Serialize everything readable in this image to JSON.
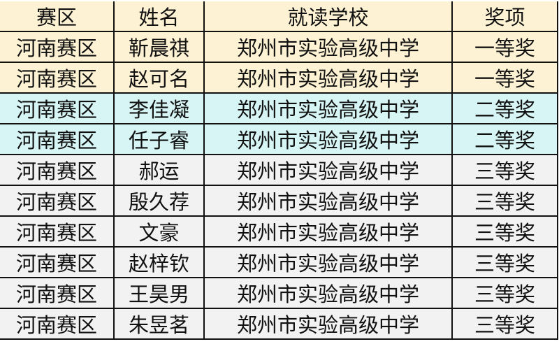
{
  "headers": [
    "赛区",
    "姓名",
    "就读学校",
    "奖项"
  ],
  "rows": [
    [
      "河南赛区",
      "靳晨祺",
      "郑州市实验高级中学",
      "一等奖"
    ],
    [
      "河南赛区",
      "赵可名",
      "郑州市实验高级中学",
      "一等奖"
    ],
    [
      "河南赛区",
      "李佳凝",
      "郑州市实验高级中学",
      "二等奖"
    ],
    [
      "河南赛区",
      "任子睿",
      "郑州市实验高级中学",
      "二等奖"
    ],
    [
      "河南赛区",
      "郝运",
      "郑州市实验高级中学",
      "三等奖"
    ],
    [
      "河南赛区",
      "殷久荐",
      "郑州市实验高级中学",
      "三等奖"
    ],
    [
      "河南赛区",
      "文豪",
      "郑州市实验高级中学",
      "三等奖"
    ],
    [
      "河南赛区",
      "赵梓钦",
      "郑州市实验高级中学",
      "三等奖"
    ],
    [
      "河南赛区",
      "王昊男",
      "郑州市实验高级中学",
      "三等奖"
    ],
    [
      "河南赛区",
      "朱昱茗",
      "郑州市实验高级中学",
      "三等奖"
    ]
  ],
  "colors": {
    "first_prize": "#fdf2d3",
    "second_prize": "#d6f5f4",
    "third_prize": "#f2f2f2"
  }
}
